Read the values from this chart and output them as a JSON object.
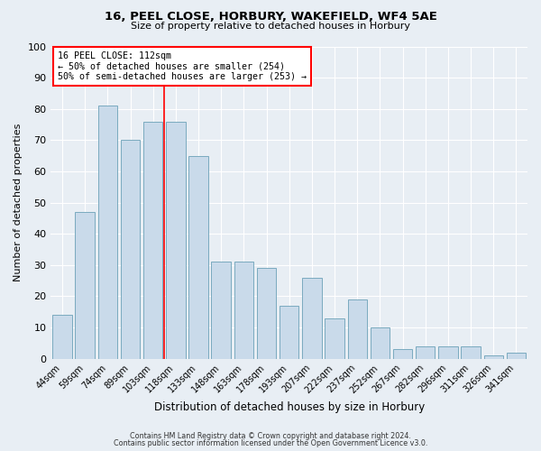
{
  "title": "16, PEEL CLOSE, HORBURY, WAKEFIELD, WF4 5AE",
  "subtitle": "Size of property relative to detached houses in Horbury",
  "xlabel": "Distribution of detached houses by size in Horbury",
  "ylabel": "Number of detached properties",
  "bar_color": "#c9daea",
  "bar_edge_color": "#7aaabf",
  "background_color": "#e8eef4",
  "grid_color": "#ffffff",
  "categories": [
    "44sqm",
    "59sqm",
    "74sqm",
    "89sqm",
    "103sqm",
    "118sqm",
    "133sqm",
    "148sqm",
    "163sqm",
    "178sqm",
    "193sqm",
    "207sqm",
    "222sqm",
    "237sqm",
    "252sqm",
    "267sqm",
    "282sqm",
    "296sqm",
    "311sqm",
    "326sqm",
    "341sqm"
  ],
  "values": [
    14,
    47,
    81,
    70,
    76,
    76,
    65,
    31,
    31,
    29,
    17,
    26,
    13,
    19,
    10,
    3,
    4,
    4,
    4,
    1,
    2
  ],
  "ylim": [
    0,
    100
  ],
  "yticks": [
    0,
    10,
    20,
    30,
    40,
    50,
    60,
    70,
    80,
    90,
    100
  ],
  "red_line_x": 4.5,
  "annotation_line1": "16 PEEL CLOSE: 112sqm",
  "annotation_line2": "← 50% of detached houses are smaller (254)",
  "annotation_line3": "50% of semi-detached houses are larger (253) →",
  "footer1": "Contains HM Land Registry data © Crown copyright and database right 2024.",
  "footer2": "Contains public sector information licensed under the Open Government Licence v3.0."
}
